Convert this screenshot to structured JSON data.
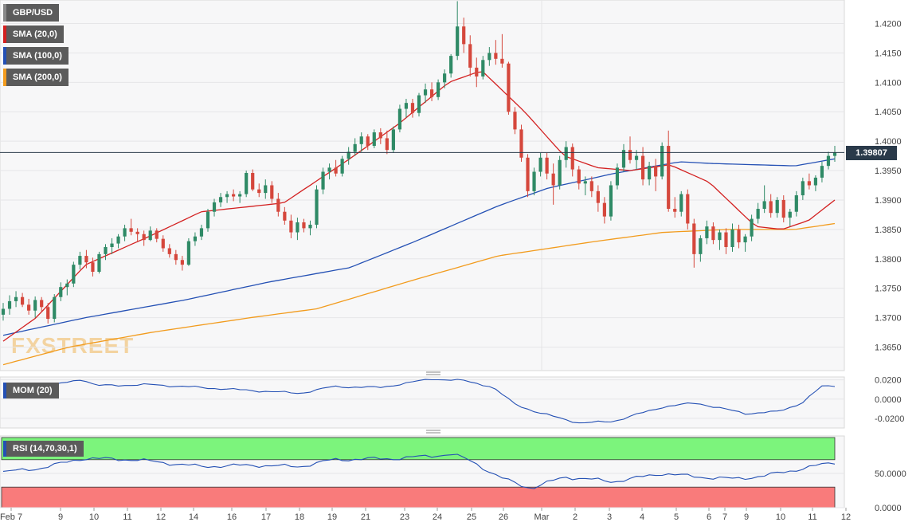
{
  "chart_data": [
    {
      "type": "candlestick",
      "legend": [
        {
          "label": "GBP/USD",
          "color": "#888888"
        },
        {
          "label": "SMA (20,0)",
          "color": "#d32020"
        },
        {
          "label": "SMA (100,0)",
          "color": "#2450b4"
        },
        {
          "label": "SMA (200,0)",
          "color": "#f29b1d"
        }
      ],
      "watermark": "FXSTREET",
      "current_price_label": "1.39807",
      "current_price": 1.39807,
      "ylim": [
        1.361,
        1.424
      ],
      "y_ticks": [
        "1.4200",
        "1.4150",
        "1.4100",
        "1.4050",
        "1.4000",
        "1.3950",
        "1.3900",
        "1.3850",
        "1.3800",
        "1.3750",
        "1.3700",
        "1.3650"
      ],
      "y_tick_values": [
        1.42,
        1.415,
        1.41,
        1.405,
        1.4,
        1.395,
        1.39,
        1.385,
        1.38,
        1.375,
        1.37,
        1.365
      ],
      "x_ticks": [
        "Feb 7",
        "9",
        "10",
        "11",
        "12",
        "14",
        "16",
        "17",
        "18",
        "19",
        "21",
        "23",
        "24",
        "25",
        "26",
        "Mar",
        "2",
        "3",
        "4",
        "5",
        "6",
        "7",
        "9",
        "10",
        "11",
        "12"
      ],
      "sma20_keypoints": [
        [
          0,
          1.366
        ],
        [
          10,
          1.37
        ],
        [
          25,
          1.379
        ],
        [
          45,
          1.384
        ],
        [
          60,
          1.388
        ],
        [
          85,
          1.3895
        ],
        [
          105,
          1.397
        ],
        [
          120,
          1.403
        ],
        [
          135,
          1.41
        ],
        [
          145,
          1.412
        ],
        [
          158,
          1.405
        ],
        [
          170,
          1.3975
        ],
        [
          180,
          1.3955
        ],
        [
          190,
          1.395
        ],
        [
          202,
          1.396
        ],
        [
          214,
          1.393
        ],
        [
          228,
          1.3855
        ],
        [
          236,
          1.385
        ],
        [
          244,
          1.3865
        ],
        [
          252,
          1.39
        ]
      ],
      "sma100_keypoints": [
        [
          0,
          1.367
        ],
        [
          25,
          1.37
        ],
        [
          55,
          1.373
        ],
        [
          80,
          1.376
        ],
        [
          105,
          1.3785
        ],
        [
          125,
          1.383
        ],
        [
          150,
          1.389
        ],
        [
          165,
          1.392
        ],
        [
          185,
          1.3945
        ],
        [
          205,
          1.3965
        ],
        [
          215,
          1.3962
        ],
        [
          240,
          1.3958
        ],
        [
          252,
          1.397
        ]
      ],
      "sma200_keypoints": [
        [
          0,
          1.362
        ],
        [
          20,
          1.365
        ],
        [
          45,
          1.3675
        ],
        [
          75,
          1.37
        ],
        [
          95,
          1.3715
        ],
        [
          125,
          1.3765
        ],
        [
          150,
          1.3805
        ],
        [
          180,
          1.383
        ],
        [
          200,
          1.3845
        ],
        [
          220,
          1.385
        ],
        [
          240,
          1.385
        ],
        [
          252,
          1.386
        ]
      ],
      "candles_ohlc": [
        [
          1.3705,
          1.3725,
          1.3695,
          1.3715
        ],
        [
          1.3715,
          1.3738,
          1.3705,
          1.3728
        ],
        [
          1.3728,
          1.3745,
          1.3718,
          1.3735
        ],
        [
          1.3735,
          1.3742,
          1.3718,
          1.3722
        ],
        [
          1.3722,
          1.3732,
          1.3705,
          1.3712
        ],
        [
          1.3712,
          1.3736,
          1.37,
          1.373
        ],
        [
          1.373,
          1.3735,
          1.371,
          1.3718
        ],
        [
          1.3718,
          1.3725,
          1.369,
          1.3698
        ],
        [
          1.3698,
          1.374,
          1.3692,
          1.3735
        ],
        [
          1.3735,
          1.376,
          1.3728,
          1.3752
        ],
        [
          1.3752,
          1.3765,
          1.3738,
          1.3758
        ],
        [
          1.3758,
          1.3795,
          1.3752,
          1.379
        ],
        [
          1.379,
          1.3812,
          1.3782,
          1.3805
        ],
        [
          1.3805,
          1.3815,
          1.3784,
          1.3794
        ],
        [
          1.3794,
          1.3802,
          1.377,
          1.3778
        ],
        [
          1.3778,
          1.3812,
          1.3775,
          1.3808
        ],
        [
          1.3808,
          1.3825,
          1.3798,
          1.382
        ],
        [
          1.382,
          1.3835,
          1.3808,
          1.3826
        ],
        [
          1.3826,
          1.3842,
          1.3818,
          1.3838
        ],
        [
          1.3838,
          1.3858,
          1.383,
          1.3852
        ],
        [
          1.3852,
          1.3868,
          1.384,
          1.3846
        ],
        [
          1.3846,
          1.3852,
          1.3828,
          1.3842
        ],
        [
          1.3842,
          1.3848,
          1.3822,
          1.3832
        ],
        [
          1.3832,
          1.3855,
          1.383,
          1.3848
        ],
        [
          1.3848,
          1.3852,
          1.3828,
          1.3834
        ],
        [
          1.3834,
          1.384,
          1.3812,
          1.3818
        ],
        [
          1.3818,
          1.3825,
          1.3802,
          1.3808
        ],
        [
          1.3808,
          1.3815,
          1.379,
          1.3798
        ],
        [
          1.3798,
          1.3805,
          1.378,
          1.379
        ],
        [
          1.379,
          1.3835,
          1.3788,
          1.383
        ],
        [
          1.383,
          1.3845,
          1.3822,
          1.3838
        ],
        [
          1.3838,
          1.3858,
          1.3832,
          1.3852
        ],
        [
          1.3852,
          1.3885,
          1.3846,
          1.388
        ],
        [
          1.388,
          1.3902,
          1.3872,
          1.3896
        ],
        [
          1.3896,
          1.3912,
          1.3888,
          1.3905
        ],
        [
          1.3905,
          1.3915,
          1.3895,
          1.391
        ],
        [
          1.391,
          1.3918,
          1.3898,
          1.3906
        ],
        [
          1.3906,
          1.3915,
          1.3895,
          1.391
        ],
        [
          1.391,
          1.395,
          1.3905,
          1.3946
        ],
        [
          1.3946,
          1.3952,
          1.3915,
          1.3918
        ],
        [
          1.3918,
          1.3928,
          1.3905,
          1.3912
        ],
        [
          1.3912,
          1.3935,
          1.3902,
          1.3925
        ],
        [
          1.3925,
          1.3932,
          1.3895,
          1.3902
        ],
        [
          1.3902,
          1.3912,
          1.3872,
          1.388
        ],
        [
          1.388,
          1.3888,
          1.3858,
          1.3865
        ],
        [
          1.3865,
          1.3875,
          1.3835,
          1.3845
        ],
        [
          1.3845,
          1.387,
          1.3832,
          1.3862
        ],
        [
          1.3862,
          1.3868,
          1.3845,
          1.3852
        ],
        [
          1.3852,
          1.3865,
          1.384,
          1.3858
        ],
        [
          1.3858,
          1.3925,
          1.3852,
          1.3918
        ],
        [
          1.3918,
          1.3955,
          1.391,
          1.3948
        ],
        [
          1.3948,
          1.3962,
          1.3935,
          1.3955
        ],
        [
          1.3955,
          1.3968,
          1.394,
          1.3945
        ],
        [
          1.3945,
          1.3975,
          1.394,
          1.397
        ],
        [
          1.397,
          1.399,
          1.396,
          1.3982
        ],
        [
          1.3982,
          1.4005,
          1.3975,
          1.3995
        ],
        [
          1.3995,
          1.4015,
          1.3982,
          1.4008
        ],
        [
          1.4008,
          1.4012,
          1.3985,
          1.3992
        ],
        [
          1.3992,
          1.402,
          1.3988,
          1.4015
        ],
        [
          1.4015,
          1.4022,
          1.3995,
          1.4005
        ],
        [
          1.4005,
          1.4018,
          1.3978,
          1.3985
        ],
        [
          1.3985,
          1.4025,
          1.398,
          1.402
        ],
        [
          1.402,
          1.4062,
          1.4015,
          1.4055
        ],
        [
          1.4055,
          1.4072,
          1.404,
          1.4065
        ],
        [
          1.4065,
          1.4072,
          1.404,
          1.4048
        ],
        [
          1.4048,
          1.4082,
          1.4042,
          1.4078
        ],
        [
          1.4078,
          1.4098,
          1.4065,
          1.4088
        ],
        [
          1.4088,
          1.41,
          1.4068,
          1.4075
        ],
        [
          1.4075,
          1.4105,
          1.407,
          1.41
        ],
        [
          1.41,
          1.4122,
          1.409,
          1.4115
        ],
        [
          1.4115,
          1.4148,
          1.4108,
          1.4145
        ],
        [
          1.4145,
          1.4238,
          1.4138,
          1.4195
        ],
        [
          1.4195,
          1.421,
          1.415,
          1.4165
        ],
        [
          1.4165,
          1.418,
          1.411,
          1.4125
        ],
        [
          1.4125,
          1.4142,
          1.4092,
          1.411
        ],
        [
          1.411,
          1.4145,
          1.4105,
          1.4138
        ],
        [
          1.4138,
          1.416,
          1.4128,
          1.415
        ],
        [
          1.415,
          1.4172,
          1.413,
          1.414
        ],
        [
          1.414,
          1.4182,
          1.4125,
          1.4132
        ],
        [
          1.4132,
          1.4135,
          1.4045,
          1.405
        ],
        [
          1.405,
          1.4058,
          1.4012,
          1.402
        ],
        [
          1.402,
          1.4028,
          1.3965,
          1.3972
        ],
        [
          1.3972,
          1.3978,
          1.3905,
          1.3915
        ],
        [
          1.3915,
          1.3955,
          1.3908,
          1.3948
        ],
        [
          1.3948,
          1.398,
          1.394,
          1.3972
        ],
        [
          1.3972,
          1.398,
          1.3935,
          1.3945
        ],
        [
          1.3945,
          1.3962,
          1.3892,
          1.3925
        ],
        [
          1.3925,
          1.3975,
          1.3918,
          1.3968
        ],
        [
          1.3968,
          1.4,
          1.3955,
          1.399
        ],
        [
          1.399,
          1.3996,
          1.394,
          1.3952
        ],
        [
          1.3952,
          1.3958,
          1.3918,
          1.3928
        ],
        [
          1.3928,
          1.394,
          1.3908,
          1.3932
        ],
        [
          1.3932,
          1.394,
          1.3905,
          1.3915
        ],
        [
          1.3915,
          1.3925,
          1.388,
          1.3895
        ],
        [
          1.3895,
          1.3905,
          1.386,
          1.3872
        ],
        [
          1.3872,
          1.3932,
          1.3865,
          1.3925
        ],
        [
          1.3925,
          1.3962,
          1.3918,
          1.3955
        ],
        [
          1.3955,
          1.3995,
          1.3948,
          1.3985
        ],
        [
          1.3985,
          1.4008,
          1.3962,
          1.3968
        ],
        [
          1.3968,
          1.3985,
          1.3952,
          1.3975
        ],
        [
          1.3975,
          1.399,
          1.3925,
          1.3935
        ],
        [
          1.3935,
          1.3965,
          1.3925,
          1.3958
        ],
        [
          1.3958,
          1.397,
          1.3915,
          1.394
        ],
        [
          1.394,
          1.3998,
          1.3935,
          1.3992
        ],
        [
          1.3992,
          1.4018,
          1.388,
          1.3885
        ],
        [
          1.3885,
          1.3905,
          1.387,
          1.388
        ],
        [
          1.388,
          1.3915,
          1.3872,
          1.391
        ],
        [
          1.391,
          1.3918,
          1.385,
          1.386
        ],
        [
          1.386,
          1.3868,
          1.3785,
          1.3808
        ],
        [
          1.3808,
          1.384,
          1.3795,
          1.3835
        ],
        [
          1.3835,
          1.3865,
          1.3825,
          1.3855
        ],
        [
          1.3855,
          1.3862,
          1.3825,
          1.3832
        ],
        [
          1.3832,
          1.385,
          1.3815,
          1.3845
        ],
        [
          1.3845,
          1.3852,
          1.3808,
          1.382
        ],
        [
          1.382,
          1.386,
          1.3812,
          1.385
        ],
        [
          1.385,
          1.3858,
          1.3818,
          1.3828
        ],
        [
          1.3828,
          1.3842,
          1.3812,
          1.3838
        ],
        [
          1.3838,
          1.3875,
          1.383,
          1.3868
        ],
        [
          1.3868,
          1.3895,
          1.386,
          1.3885
        ],
        [
          1.3885,
          1.3925,
          1.3878,
          1.3898
        ],
        [
          1.3898,
          1.391,
          1.387,
          1.3878
        ],
        [
          1.3878,
          1.3905,
          1.387,
          1.39
        ],
        [
          1.39,
          1.3908,
          1.3862,
          1.387
        ],
        [
          1.387,
          1.3885,
          1.3855,
          1.388
        ],
        [
          1.388,
          1.3915,
          1.3872,
          1.3908
        ],
        [
          1.3908,
          1.3938,
          1.39,
          1.3932
        ],
        [
          1.3932,
          1.3945,
          1.3918,
          1.3925
        ],
        [
          1.3925,
          1.3942,
          1.3915,
          1.3938
        ],
        [
          1.3938,
          1.3965,
          1.393,
          1.3958
        ],
        [
          1.3958,
          1.3982,
          1.3952,
          1.3975
        ],
        [
          1.3975,
          1.3992,
          1.3965,
          1.3981
        ]
      ]
    },
    {
      "type": "line",
      "indicator_label": "MOM (20)",
      "ylim": [
        -0.03,
        0.023
      ],
      "y_ticks": [
        "0.0200",
        "0.0000",
        "-0.0200"
      ],
      "y_tick_values": [
        0.02,
        0.0,
        -0.02
      ],
      "keypoints": [
        [
          0,
          0.008
        ],
        [
          12,
          0.012
        ],
        [
          24,
          0.021
        ],
        [
          28,
          0.014
        ],
        [
          45,
          0.015
        ],
        [
          60,
          0.012
        ],
        [
          75,
          0.009
        ],
        [
          90,
          0.006
        ],
        [
          100,
          0.013
        ],
        [
          114,
          0.012
        ],
        [
          130,
          0.021
        ],
        [
          140,
          0.019
        ],
        [
          148,
          0.013
        ],
        [
          155,
          -0.005
        ],
        [
          162,
          -0.014
        ],
        [
          175,
          -0.025
        ],
        [
          185,
          -0.023
        ],
        [
          200,
          -0.008
        ],
        [
          210,
          -0.004
        ],
        [
          225,
          -0.015
        ],
        [
          235,
          -0.013
        ],
        [
          242,
          -0.004
        ],
        [
          248,
          0.013
        ],
        [
          252,
          0.014
        ]
      ]
    },
    {
      "type": "line",
      "indicator_label": "RSI (14,70,30,1)",
      "ylim": [
        0,
        100
      ],
      "y_ticks": [
        "50.0000",
        "0.0000"
      ],
      "y_tick_values": [
        50,
        0
      ],
      "overbought": 70,
      "oversold": 30,
      "keypoints": [
        [
          0,
          52
        ],
        [
          12,
          58
        ],
        [
          24,
          72
        ],
        [
          40,
          70
        ],
        [
          60,
          60
        ],
        [
          75,
          62
        ],
        [
          90,
          60
        ],
        [
          100,
          70
        ],
        [
          120,
          72
        ],
        [
          136,
          78
        ],
        [
          142,
          68
        ],
        [
          150,
          45
        ],
        [
          160,
          28
        ],
        [
          170,
          45
        ],
        [
          185,
          38
        ],
        [
          200,
          50
        ],
        [
          210,
          45
        ],
        [
          222,
          42
        ],
        [
          230,
          46
        ],
        [
          240,
          55
        ],
        [
          245,
          60
        ],
        [
          252,
          66
        ]
      ]
    }
  ]
}
